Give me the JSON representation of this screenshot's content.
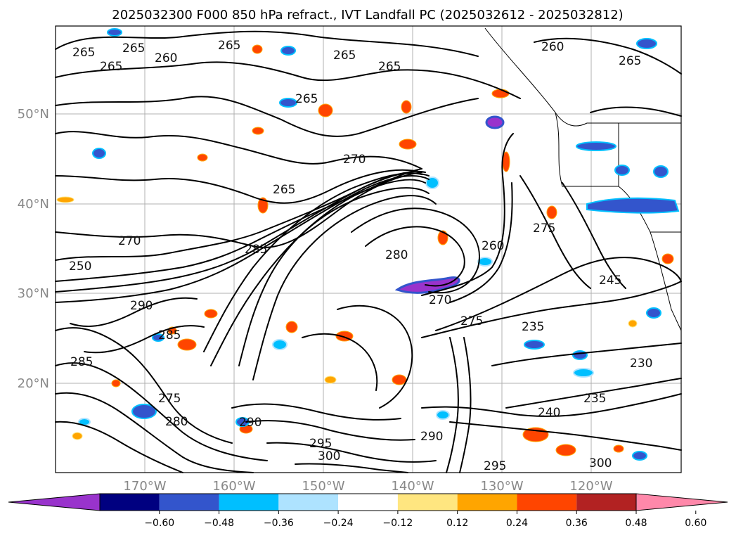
{
  "title": "2025032300 F000 850 hPa refract., IVT Landfall PC (2025032612 - 2025032812)",
  "lat_labels": [
    "50°N",
    "40°N",
    "30°N",
    "20°N"
  ],
  "lon_labels": [
    "170°W",
    "160°W",
    "150°W",
    "140°W",
    "130°W",
    "120°W"
  ],
  "colorbar": {
    "ticks": [
      "−0.60",
      "−0.48",
      "−0.36",
      "−0.24",
      "−0.12",
      "0.12",
      "0.24",
      "0.36",
      "0.48",
      "0.60"
    ],
    "colors": [
      "#9933cc",
      "#000080",
      "#3355cc",
      "#00bfff",
      "#aee3ff",
      "#ffffff",
      "#ffe680",
      "#ffa500",
      "#ff4500",
      "#b22222",
      "#ff88aa"
    ],
    "extend": "both"
  },
  "contour_labels": [
    "265",
    "265",
    "260",
    "265",
    "265",
    "265",
    "260",
    "265",
    "265",
    "265",
    "270",
    "265",
    "270",
    "285",
    "250",
    "280",
    "260",
    "275",
    "245",
    "270",
    "275",
    "235",
    "230",
    "235",
    "240",
    "285",
    "290",
    "275",
    "280",
    "285",
    "290",
    "295",
    "300",
    "300",
    "295",
    "290"
  ],
  "map_colors": {
    "pos_light": "#ffe680",
    "pos_mid": "#ffa500",
    "pos_strong": "#ff4500",
    "neg_light": "#00bfff",
    "neg_mid": "#3355cc",
    "neg_strong": "#9933cc"
  }
}
